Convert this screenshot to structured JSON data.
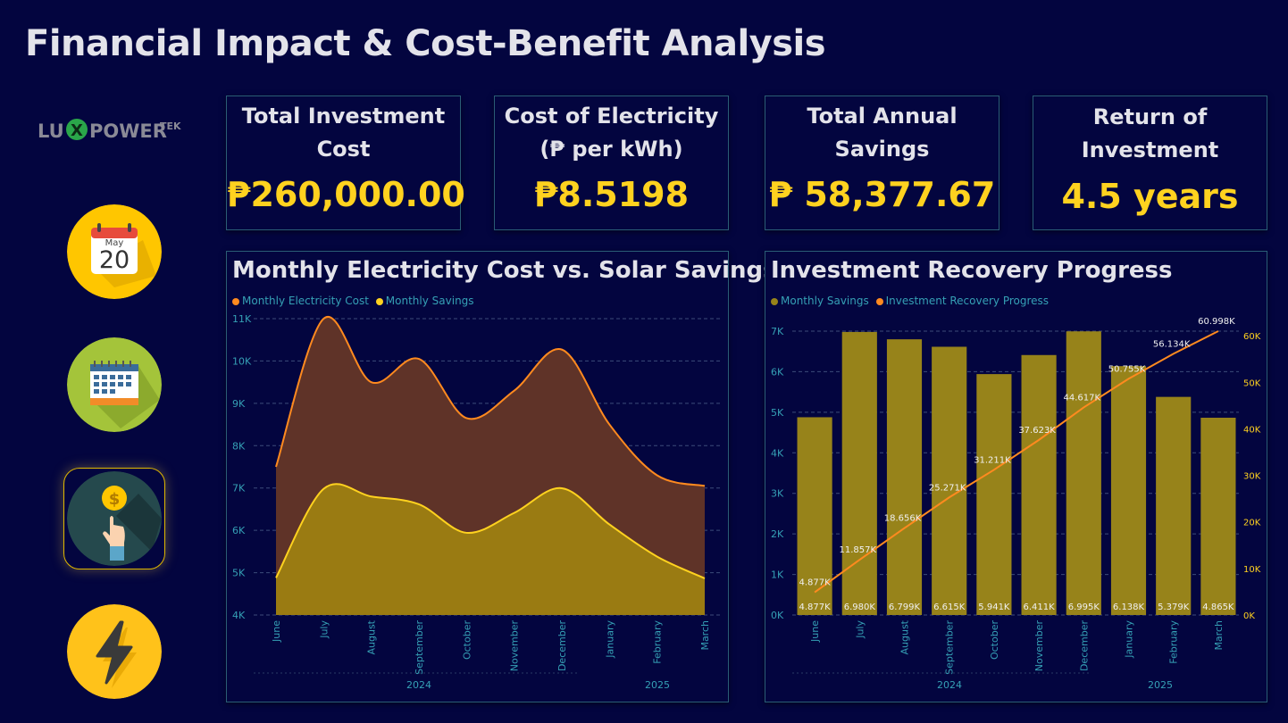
{
  "page": {
    "title": "Financial Impact & Cost-Benefit Analysis"
  },
  "logo": {
    "text_left": "LU",
    "text_x": "X",
    "text_right": "POWER",
    "text_tek": "TEK"
  },
  "nav": [
    {
      "name": "calendar-day-icon",
      "month": "May",
      "day": "20"
    },
    {
      "name": "calendar-grid-icon"
    },
    {
      "name": "coin-hand-icon",
      "active": true
    },
    {
      "name": "lightning-icon"
    }
  ],
  "kpis": [
    {
      "title": "Total Investment Cost",
      "value": "₱260,000.00"
    },
    {
      "title": "Cost of Electricity (₱ per kWh)",
      "value": "₱8.5198"
    },
    {
      "title": "Total Annual Savings",
      "value": "₱ 58,377.67"
    },
    {
      "title": "Return of Investment",
      "value": "4.5 years"
    }
  ],
  "colors": {
    "orange": "#ff8a1f",
    "yellow": "#ffd21f",
    "teal": "#35a0b5",
    "bar": "#97831a"
  },
  "chart_data": [
    {
      "type": "area",
      "title": "Monthly Electricity Cost vs. Solar Savings",
      "legend": [
        "Monthly Electricity Cost",
        "Monthly Savings"
      ],
      "legend_position": "top-left",
      "categories": [
        "June",
        "July",
        "August",
        "September",
        "October",
        "November",
        "December",
        "January",
        "February",
        "March"
      ],
      "year_labels": [
        "2024",
        "2025"
      ],
      "y_ticks": [
        "4K",
        "5K",
        "6K",
        "7K",
        "8K",
        "9K",
        "10K",
        "11K"
      ],
      "ylim": [
        4000,
        11000
      ],
      "grid": true,
      "series": [
        {
          "name": "Monthly Electricity Cost",
          "values": [
            7500,
            11000,
            9500,
            10050,
            8650,
            9300,
            10270,
            8500,
            7300,
            7050
          ]
        },
        {
          "name": "Monthly Savings",
          "values": [
            4877,
            6980,
            6799,
            6615,
            5941,
            6411,
            6995,
            6138,
            5379,
            4865
          ]
        }
      ]
    },
    {
      "type": "bar",
      "title": "Investment Recovery Progress",
      "legend": [
        "Monthly Savings",
        "Investment Recovery Progress"
      ],
      "legend_position": "top-left",
      "categories": [
        "June",
        "July",
        "August",
        "September",
        "October",
        "November",
        "December",
        "January",
        "February",
        "March"
      ],
      "year_labels": [
        "2024",
        "2025"
      ],
      "y_ticks_left": [
        "0K",
        "1K",
        "2K",
        "3K",
        "4K",
        "5K",
        "6K",
        "7K"
      ],
      "y_ticks_right": [
        "0K",
        "10K",
        "20K",
        "30K",
        "40K",
        "50K",
        "60K"
      ],
      "ylim_left": [
        0,
        7000
      ],
      "ylim_right": [
        0,
        61000
      ],
      "grid": true,
      "series": [
        {
          "name": "Monthly Savings",
          "type": "bar",
          "values": [
            4877,
            6980,
            6799,
            6615,
            5941,
            6411,
            6995,
            6138,
            5379,
            4865
          ],
          "labels": [
            "4.877K",
            "6.980K",
            "6.799K",
            "6.615K",
            "5.941K",
            "6.411K",
            "6.995K",
            "6.138K",
            "5.379K",
            "4.865K"
          ]
        },
        {
          "name": "Investment Recovery Progress",
          "type": "line",
          "values": [
            4877,
            11857,
            18656,
            25271,
            31211,
            37623,
            44617,
            50755,
            56134,
            60998
          ],
          "labels": [
            "4.877K",
            "11.857K",
            "18.656K",
            "25.271K",
            "31.211K",
            "37.623K",
            "44.617K",
            "50.755K",
            "56.134K",
            "60.998K"
          ]
        }
      ]
    }
  ]
}
